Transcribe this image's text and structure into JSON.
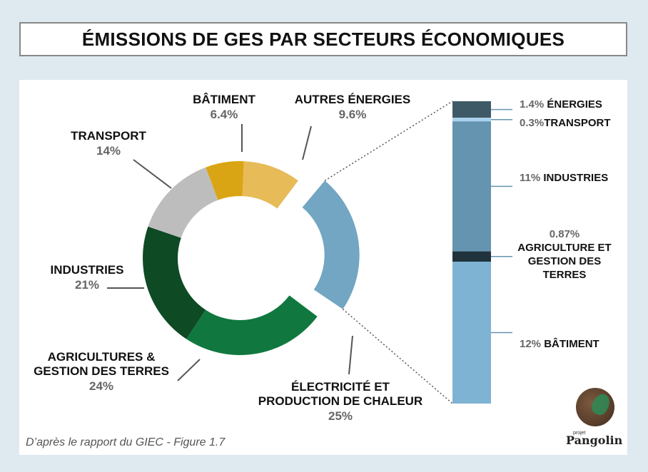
{
  "title": "ÉMISSIONS DE GES PAR SECTEURS ÉCONOMIQUES",
  "source": "D’après le rapport du GIEC - Figure 1.7",
  "logo": {
    "small": "projet",
    "name": "Pangolin"
  },
  "chart_data": [
    {
      "type": "pie",
      "slices": [
        {
          "label_lines": [
            "BÂTIMENT"
          ],
          "value_label": "6.4%",
          "value": 6.4,
          "color": "#daa514"
        },
        {
          "label_lines": [
            "AUTRES ÉNERGIES"
          ],
          "value_label": "9.6%",
          "value": 9.6,
          "color": "#e6bb58"
        },
        {
          "label_lines": [
            "ÉLECTRICITÉ ET",
            "PRODUCTION DE CHALEUR"
          ],
          "value_label": "25%",
          "value": 25,
          "color": "#72a6c2",
          "exploded": true
        },
        {
          "label_lines": [
            "AGRICULTURES &",
            "GESTION DES TERRES"
          ],
          "value_label": "24%",
          "value": 24,
          "color": "#10783f"
        },
        {
          "label_lines": [
            "INDUSTRIES"
          ],
          "value_label": "21%",
          "value": 21,
          "color": "#0e4a24"
        },
        {
          "label_lines": [
            "TRANSPORT"
          ],
          "value_label": "14%",
          "value": 14,
          "color": "#bdbdbd"
        }
      ]
    },
    {
      "type": "bar",
      "stacked": true,
      "segments": [
        {
          "label": "1.4% ÉNERGIES",
          "label_lines": [
            "1.4% ÉNERGIES"
          ],
          "value": 1.4,
          "color": "#3f5a67"
        },
        {
          "label": "0.3%TRANSPORT",
          "label_lines": [
            "0.3%TRANSPORT"
          ],
          "value": 0.3,
          "color": "#a9d3ee"
        },
        {
          "label": "11% INDUSTRIES",
          "label_lines": [
            "11% INDUSTRIES"
          ],
          "value": 11,
          "color": "#6594b0"
        },
        {
          "label": "0.87% AGRICULTURE ET GESTION DES TERRES",
          "label_lines": [
            "0.87%",
            "AGRICULTURE ET",
            "GESTION DES",
            "TERRES"
          ],
          "value": 0.87,
          "color": "#20323b"
        },
        {
          "label": "12% BÂTIMENT",
          "label_lines": [
            "12% BÂTIMENT"
          ],
          "value": 12,
          "color": "#7fb3d3"
        }
      ]
    }
  ]
}
